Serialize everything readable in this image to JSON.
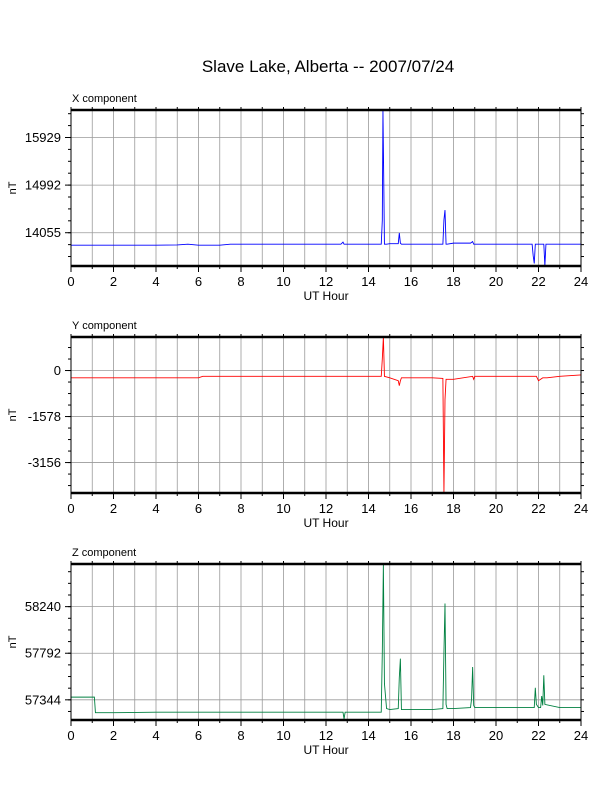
{
  "page": {
    "title": "Slave Lake, Alberta -- 2007/07/24"
  },
  "chart_data": [
    {
      "type": "line",
      "title": "X component",
      "xlabel": "UT Hour",
      "ylabel": "nT",
      "xlim": [
        0,
        24
      ],
      "ylim": [
        13400,
        16470
      ],
      "xticks": [
        0,
        2,
        4,
        6,
        8,
        10,
        12,
        14,
        16,
        18,
        20,
        22,
        24
      ],
      "yticks": [
        14055,
        14992,
        15929
      ],
      "grid": true,
      "color": "#0000ff",
      "series": [
        {
          "x": [
            0,
            1,
            2,
            3,
            4,
            5,
            5.5,
            6,
            7,
            7.5,
            8,
            9,
            10,
            11,
            12,
            12.7,
            12.8,
            12.85,
            13,
            14,
            14.6,
            14.65,
            14.68,
            14.72,
            14.75,
            14.85,
            15,
            15.4,
            15.45,
            15.5,
            15.55,
            16,
            17,
            17.5,
            17.55,
            17.6,
            17.65,
            17.7,
            18,
            18.8,
            18.9,
            18.95,
            19,
            20,
            21,
            21.7,
            21.75,
            21.8,
            21.85,
            21.9,
            22,
            22.2,
            22.25,
            22.3,
            22.35,
            22.5,
            23,
            24
          ],
          "y": [
            13810,
            13810,
            13810,
            13810,
            13810,
            13815,
            13830,
            13810,
            13810,
            13830,
            13830,
            13830,
            13830,
            13830,
            13830,
            13830,
            13870,
            13830,
            13830,
            13830,
            13830,
            14300,
            16470,
            15000,
            13830,
            13830,
            13840,
            13840,
            14050,
            13850,
            13830,
            13830,
            13830,
            13830,
            14310,
            14500,
            13830,
            13830,
            13850,
            13850,
            13880,
            13830,
            13830,
            13830,
            13830,
            13830,
            13600,
            13450,
            13830,
            13830,
            13830,
            13830,
            13830,
            13400,
            13830,
            13830,
            13830,
            13830
          ]
        }
      ]
    },
    {
      "type": "line",
      "title": "Y component",
      "xlabel": "UT Hour",
      "ylabel": "nT",
      "xlim": [
        0,
        24
      ],
      "ylim": [
        -4200,
        1150
      ],
      "xticks": [
        0,
        2,
        4,
        6,
        8,
        10,
        12,
        14,
        16,
        18,
        20,
        22,
        24
      ],
      "yticks": [
        -3156,
        -1578,
        0
      ],
      "grid": true,
      "color": "#ff0000",
      "series": [
        {
          "x": [
            0,
            2,
            4,
            6,
            6.2,
            8,
            10,
            12,
            13,
            14,
            14.6,
            14.65,
            14.7,
            14.75,
            14.85,
            15,
            15.4,
            15.45,
            15.5,
            15.55,
            16,
            17,
            17.5,
            17.55,
            17.6,
            17.65,
            17.7,
            18,
            18.9,
            18.95,
            19,
            20,
            21,
            21.9,
            22,
            22.1,
            22.2,
            22.4,
            23,
            24
          ],
          "y": [
            -250,
            -250,
            -250,
            -250,
            -200,
            -200,
            -200,
            -200,
            -200,
            -200,
            -200,
            400,
            1150,
            -200,
            -220,
            -250,
            -350,
            -520,
            -350,
            -250,
            -250,
            -250,
            -270,
            -4200,
            -1000,
            -300,
            -300,
            -300,
            -200,
            -300,
            -200,
            -200,
            -200,
            -200,
            -350,
            -300,
            -250,
            -250,
            -200,
            -150
          ]
        }
      ]
    },
    {
      "type": "line",
      "title": "Z component",
      "xlabel": "UT Hour",
      "ylabel": "nT",
      "xlim": [
        0,
        24
      ],
      "ylim": [
        57150,
        58650
      ],
      "xticks": [
        0,
        2,
        4,
        6,
        8,
        10,
        12,
        14,
        16,
        18,
        20,
        22,
        24
      ],
      "yticks": [
        57344,
        57792,
        58240
      ],
      "grid": true,
      "color": "#008040",
      "series": [
        {
          "x": [
            0,
            1.1,
            1.15,
            1.2,
            2,
            4,
            6,
            8,
            10,
            12,
            12.8,
            12.85,
            12.9,
            13,
            14,
            14.6,
            14.65,
            14.7,
            14.75,
            14.85,
            15,
            15.4,
            15.45,
            15.5,
            15.55,
            16,
            17,
            17.5,
            17.55,
            17.6,
            17.65,
            17.7,
            18,
            18.8,
            18.85,
            18.9,
            18.95,
            19,
            20,
            21,
            21.8,
            21.85,
            21.9,
            22,
            22.1,
            22.15,
            22.2,
            22.25,
            22.3,
            23,
            24
          ],
          "y": [
            57370,
            57370,
            57220,
            57220,
            57220,
            57225,
            57225,
            57225,
            57225,
            57225,
            57225,
            57160,
            57225,
            57225,
            57225,
            57225,
            57800,
            58650,
            57500,
            57260,
            57250,
            57260,
            57560,
            57740,
            57250,
            57250,
            57250,
            57260,
            57800,
            58270,
            57300,
            57260,
            57260,
            57270,
            57350,
            57660,
            57290,
            57270,
            57270,
            57270,
            57270,
            57460,
            57300,
            57270,
            57270,
            57380,
            57290,
            57580,
            57300,
            57270,
            57270
          ]
        }
      ]
    }
  ]
}
